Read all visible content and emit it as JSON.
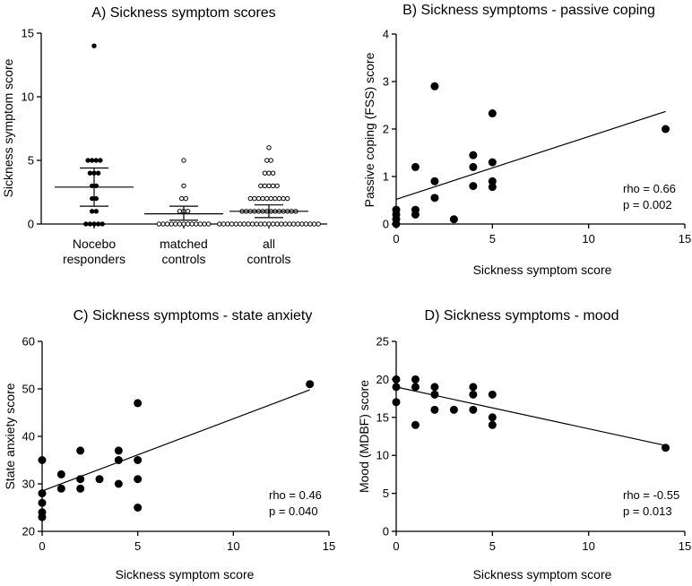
{
  "chart_data": [
    {
      "id": "A",
      "type": "scatter",
      "title": "A) Sickness symptom scores",
      "xlabel": "",
      "ylabel": "Sickness symptom score",
      "ylim": [
        0,
        15
      ],
      "yticks": [
        0,
        5,
        10,
        15
      ],
      "categories": [
        {
          "label_lines": [
            "Nocebo",
            "responders"
          ],
          "filled": true,
          "mean": 2.9,
          "sd_low": 1.4,
          "sd_high": 4.4,
          "values": [
            14,
            5,
            5,
            5,
            5,
            4,
            4,
            4,
            3,
            3,
            2,
            2,
            1,
            1,
            0,
            0,
            0,
            0,
            0
          ]
        },
        {
          "label_lines": [
            "matched",
            "controls"
          ],
          "filled": false,
          "mean": 0.8,
          "sd_low": 0.3,
          "sd_high": 1.4,
          "values": [
            5,
            3,
            2,
            2,
            1,
            1,
            1,
            0,
            0,
            0,
            0,
            0,
            0,
            0,
            0,
            0,
            0,
            0,
            0,
            0
          ]
        },
        {
          "label_lines": [
            "all",
            "controls"
          ],
          "filled": false,
          "mean": 1.0,
          "sd_low": 0.5,
          "sd_high": 1.5,
          "values": [
            6,
            5,
            5,
            4,
            4,
            4,
            3,
            3,
            3,
            3,
            3,
            2,
            2,
            2,
            2,
            2,
            2,
            2,
            2,
            2,
            2,
            1,
            1,
            1,
            1,
            1,
            1,
            1,
            1,
            1,
            1,
            1,
            1,
            1,
            1,
            0,
            0,
            0,
            0,
            0,
            0,
            0,
            0,
            0,
            0,
            0,
            0,
            0,
            0,
            0,
            0,
            0,
            0,
            0,
            0,
            0,
            0,
            0,
            0,
            0
          ]
        }
      ]
    },
    {
      "id": "B",
      "type": "scatter",
      "title": "B) Sickness symptoms - passive coping",
      "xlabel": "Sickness symptom score",
      "ylabel": "Passive coping (FSS) score",
      "xlim": [
        0,
        15
      ],
      "ylim": [
        0,
        4
      ],
      "xticks": [
        0,
        5,
        10,
        15
      ],
      "yticks": [
        0,
        1,
        2,
        3,
        4
      ],
      "points": [
        [
          0,
          0
        ],
        [
          0,
          0.1
        ],
        [
          0,
          0.2
        ],
        [
          0,
          0.3
        ],
        [
          1,
          0.2
        ],
        [
          1,
          0.3
        ],
        [
          1,
          1.2
        ],
        [
          2,
          2.9
        ],
        [
          2,
          0.9
        ],
        [
          2,
          0.55
        ],
        [
          3,
          0.1
        ],
        [
          4,
          1.45
        ],
        [
          4,
          1.2
        ],
        [
          4,
          0.8
        ],
        [
          5,
          2.33
        ],
        [
          5,
          1.3
        ],
        [
          5,
          0.9
        ],
        [
          5,
          0.78
        ],
        [
          14,
          2.0
        ]
      ],
      "fit": {
        "x": [
          0,
          14
        ],
        "y": [
          0.52,
          2.37
        ]
      },
      "stats": {
        "rho": "rho = 0.66",
        "p": "p = 0.002"
      }
    },
    {
      "id": "C",
      "type": "scatter",
      "title": "C) Sickness symptoms - state anxiety",
      "xlabel": "Sickness symptom score",
      "ylabel": "State anxiety score",
      "xlim": [
        0,
        15
      ],
      "ylim": [
        20,
        60
      ],
      "xticks": [
        0,
        5,
        10,
        15
      ],
      "yticks": [
        20,
        30,
        40,
        50,
        60
      ],
      "points": [
        [
          0,
          35
        ],
        [
          0,
          28
        ],
        [
          0,
          26
        ],
        [
          0,
          24
        ],
        [
          0,
          23
        ],
        [
          1,
          32
        ],
        [
          1,
          29
        ],
        [
          2,
          37
        ],
        [
          2,
          31
        ],
        [
          2,
          29
        ],
        [
          3,
          31
        ],
        [
          4,
          37
        ],
        [
          4,
          35
        ],
        [
          4,
          30
        ],
        [
          5,
          47
        ],
        [
          5,
          35
        ],
        [
          5,
          31
        ],
        [
          5,
          25
        ],
        [
          14,
          51
        ]
      ],
      "fit": {
        "x": [
          0,
          14
        ],
        "y": [
          28.5,
          49.8
        ]
      },
      "stats": {
        "rho": "rho = 0.46",
        "p": "p = 0.040"
      }
    },
    {
      "id": "D",
      "type": "scatter",
      "title": "D) Sickness symptoms - mood",
      "xlabel": "Sickness symptom score",
      "ylabel": "Mood (MDBF) score",
      "xlim": [
        0,
        15
      ],
      "ylim": [
        0,
        25
      ],
      "xticks": [
        0,
        5,
        10,
        15
      ],
      "yticks": [
        0,
        5,
        10,
        15,
        20,
        25
      ],
      "points": [
        [
          0,
          20
        ],
        [
          0,
          19
        ],
        [
          0,
          17
        ],
        [
          1,
          20
        ],
        [
          1,
          19
        ],
        [
          1,
          14
        ],
        [
          2,
          19
        ],
        [
          2,
          18
        ],
        [
          2,
          16
        ],
        [
          3,
          16
        ],
        [
          4,
          19
        ],
        [
          4,
          18
        ],
        [
          4,
          16
        ],
        [
          5,
          18
        ],
        [
          5,
          15
        ],
        [
          5,
          14
        ],
        [
          14,
          11
        ]
      ],
      "fit": {
        "x": [
          0,
          14
        ],
        "y": [
          19.0,
          11.3
        ]
      },
      "stats": {
        "rho": "rho = -0.55",
        "p": "p = 0.013"
      }
    }
  ]
}
